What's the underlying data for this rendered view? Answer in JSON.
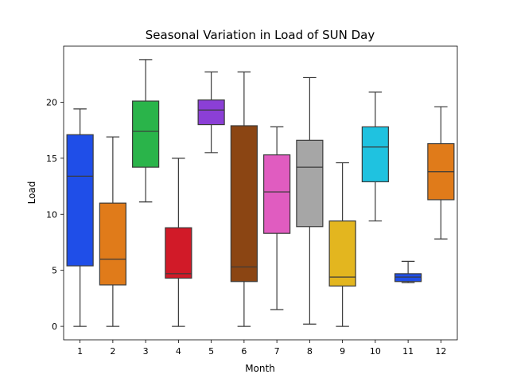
{
  "chart_data": {
    "type": "box",
    "title": "Seasonal Variation in Load of SUN Day",
    "xlabel": "Month",
    "ylabel": "Load",
    "xlim": [
      0.5,
      12.5
    ],
    "ylim": [
      -1.2,
      25.0
    ],
    "yticks": [
      0,
      5,
      10,
      15,
      20
    ],
    "categories": [
      "1",
      "2",
      "3",
      "4",
      "5",
      "6",
      "7",
      "8",
      "9",
      "10",
      "11",
      "12"
    ],
    "series": [
      {
        "category": "1",
        "min": 0.0,
        "q1": 5.4,
        "median": 13.4,
        "q3": 17.1,
        "max": 19.4,
        "color": "#1f4ee8"
      },
      {
        "category": "2",
        "min": 0.0,
        "q1": 3.7,
        "median": 6.0,
        "q3": 11.0,
        "max": 16.9,
        "color": "#e07b1a"
      },
      {
        "category": "3",
        "min": 11.1,
        "q1": 14.2,
        "median": 17.4,
        "q3": 20.1,
        "max": 23.8,
        "color": "#2ab44a"
      },
      {
        "category": "4",
        "min": 0.0,
        "q1": 4.3,
        "median": 4.7,
        "q3": 8.8,
        "max": 15.0,
        "color": "#d11a28"
      },
      {
        "category": "5",
        "min": 15.5,
        "q1": 18.0,
        "median": 19.3,
        "q3": 20.2,
        "max": 22.7,
        "color": "#8b3fd6"
      },
      {
        "category": "6",
        "min": 0.0,
        "q1": 4.0,
        "median": 5.3,
        "q3": 17.9,
        "max": 22.7,
        "color": "#8b4513"
      },
      {
        "category": "7",
        "min": 1.5,
        "q1": 8.3,
        "median": 12.0,
        "q3": 15.3,
        "max": 17.8,
        "color": "#e05cc0"
      },
      {
        "category": "8",
        "min": 0.2,
        "q1": 8.9,
        "median": 14.2,
        "q3": 16.6,
        "max": 22.2,
        "color": "#a6a6a6"
      },
      {
        "category": "9",
        "min": 0.0,
        "q1": 3.6,
        "median": 4.4,
        "q3": 9.4,
        "max": 14.6,
        "color": "#e3b61f"
      },
      {
        "category": "10",
        "min": 9.4,
        "q1": 12.9,
        "median": 16.0,
        "q3": 17.8,
        "max": 20.9,
        "color": "#1fc2e0"
      },
      {
        "category": "11",
        "min": 3.9,
        "q1": 4.0,
        "median": 4.4,
        "q3": 4.7,
        "max": 5.8,
        "color": "#1f4ee8"
      },
      {
        "category": "12",
        "min": 7.8,
        "q1": 11.3,
        "median": 13.8,
        "q3": 16.3,
        "max": 19.6,
        "color": "#e07b1a"
      }
    ]
  }
}
